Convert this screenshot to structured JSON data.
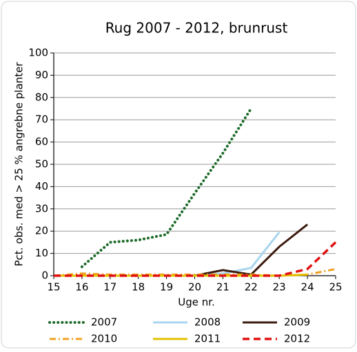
{
  "chart_data": {
    "type": "line",
    "title": "Rug 2007 - 2012, brunrust",
    "x_label": "Uge nr.",
    "y_label": "Pct. obs. med > 25 % angrebne planter",
    "x": [
      15,
      16,
      17,
      18,
      19,
      20,
      21,
      22,
      23,
      24,
      25
    ],
    "xlim": [
      15,
      25
    ],
    "xticks": [
      15,
      16,
      17,
      18,
      19,
      20,
      21,
      22,
      23,
      24,
      25
    ],
    "ylim": [
      0,
      100
    ],
    "yticks": [
      0,
      10,
      20,
      30,
      40,
      50,
      60,
      70,
      80,
      90,
      100
    ],
    "grid": true,
    "series": [
      {
        "name": "2007",
        "color": "#1e6b2a",
        "style": "dotted",
        "values": [
          null,
          4,
          15,
          16,
          18.5,
          37,
          55,
          75,
          null,
          null,
          null
        ]
      },
      {
        "name": "2008",
        "color": "#a8d4ef",
        "style": "solid",
        "values": [
          0,
          0,
          0,
          0,
          0,
          0,
          1,
          3.5,
          19.5,
          null,
          null
        ]
      },
      {
        "name": "2009",
        "color": "#3b1a0e",
        "style": "solid",
        "values": [
          0,
          0,
          0,
          0,
          0,
          0,
          2.5,
          0.5,
          13,
          23,
          null
        ]
      },
      {
        "name": "2010",
        "color": "#f0a020",
        "style": "dashdot",
        "values": [
          0,
          1,
          0.5,
          0.5,
          0.5,
          0.5,
          0.5,
          0.5,
          0,
          0.5,
          3
        ]
      },
      {
        "name": "2011",
        "color": "#e2c000",
        "style": "solid",
        "values": [
          0,
          0,
          0,
          0,
          0,
          0,
          0,
          0,
          0,
          0.5,
          null
        ]
      },
      {
        "name": "2012",
        "color": "#e01010",
        "style": "dashed",
        "values": [
          0,
          0,
          0,
          0,
          0,
          0,
          0,
          0,
          0,
          3,
          15
        ]
      }
    ]
  }
}
